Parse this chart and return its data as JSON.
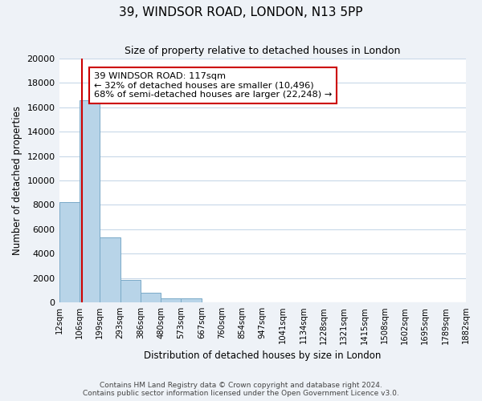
{
  "title": "39, WINDSOR ROAD, LONDON, N13 5PP",
  "subtitle": "Size of property relative to detached houses in London",
  "xlabel": "Distribution of detached houses by size in London",
  "ylabel": "Number of detached properties",
  "bar_values": [
    8200,
    16600,
    5300,
    1850,
    800,
    300,
    300,
    0,
    0,
    0,
    0,
    0,
    0,
    0,
    0,
    0,
    0,
    0,
    0,
    0
  ],
  "bin_labels": [
    "12sqm",
    "106sqm",
    "199sqm",
    "293sqm",
    "386sqm",
    "480sqm",
    "573sqm",
    "667sqm",
    "760sqm",
    "854sqm",
    "947sqm",
    "1041sqm",
    "1134sqm",
    "1228sqm",
    "1321sqm",
    "1415sqm",
    "1508sqm",
    "1602sqm",
    "1695sqm",
    "1789sqm",
    "1882sqm"
  ],
  "bar_color": "#b8d4e8",
  "bar_edge_color": "#7aaac8",
  "property_line_x": 117,
  "property_line_color": "#cc0000",
  "annotation_line1": "39 WINDSOR ROAD: 117sqm",
  "annotation_line2": "← 32% of detached houses are smaller (10,496)",
  "annotation_line3": "68% of semi-detached houses are larger (22,248) →",
  "ylim": [
    0,
    20000
  ],
  "yticks": [
    0,
    2000,
    4000,
    6000,
    8000,
    10000,
    12000,
    14000,
    16000,
    18000,
    20000
  ],
  "footnote": "Contains HM Land Registry data © Crown copyright and database right 2024.\nContains public sector information licensed under the Open Government Licence v3.0.",
  "bg_color": "#eef2f7",
  "plot_bg_color": "#ffffff",
  "grid_color": "#c8d8e8"
}
